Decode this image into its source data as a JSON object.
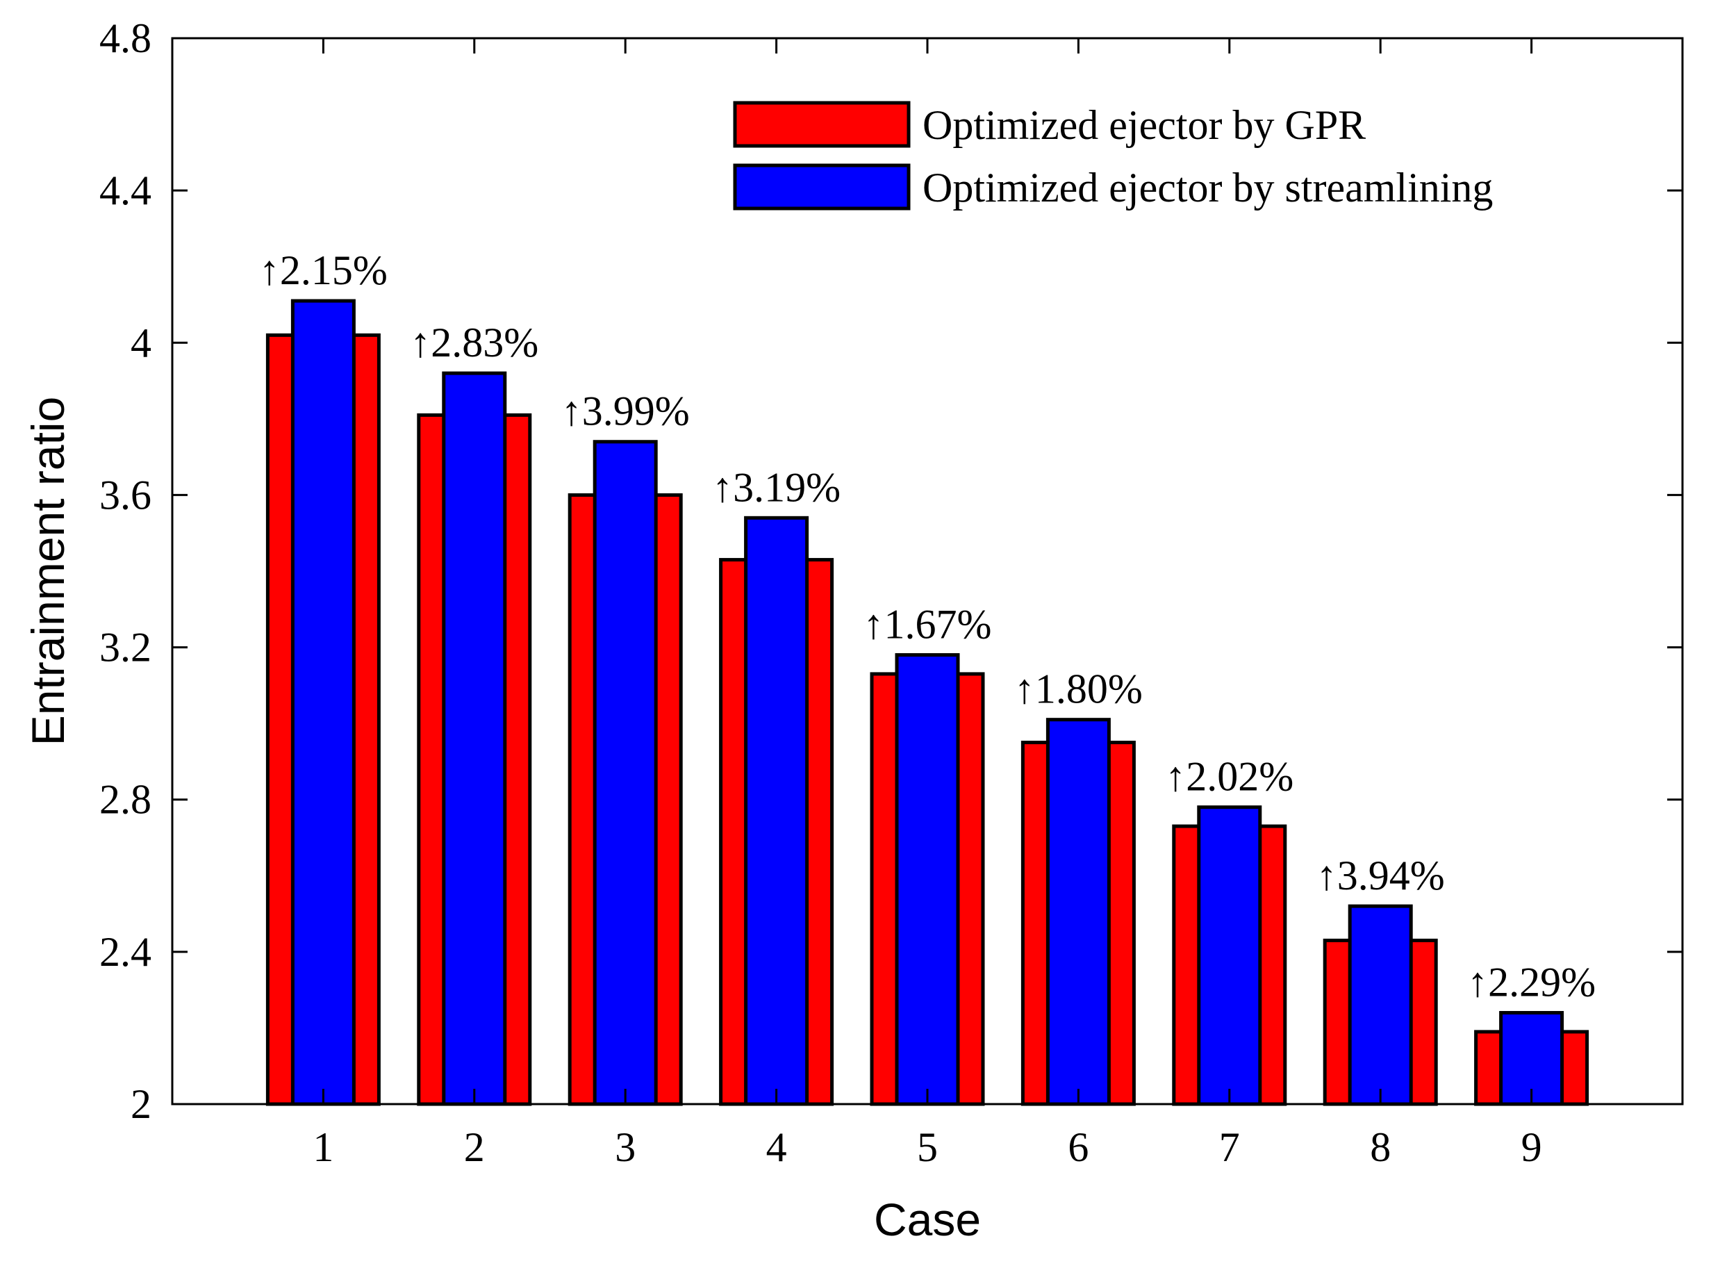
{
  "chart_data": {
    "type": "bar",
    "xlabel": "Case",
    "ylabel": "Entrainment ratio",
    "ylim": [
      2,
      4.8
    ],
    "yticks": [
      "2",
      "2.4",
      "2.8",
      "3.2",
      "3.6",
      "4",
      "4.4",
      "4.8"
    ],
    "categories": [
      "1",
      "2",
      "3",
      "4",
      "5",
      "6",
      "7",
      "8",
      "9"
    ],
    "series": [
      {
        "name": "Optimized ejector by GPR",
        "color": "#ff0000",
        "values": [
          4.02,
          3.81,
          3.6,
          3.43,
          3.13,
          2.95,
          2.73,
          2.43,
          2.19
        ]
      },
      {
        "name": "Optimized ejector by streamlining",
        "color": "#0000ff",
        "values": [
          4.11,
          3.92,
          3.74,
          3.54,
          3.18,
          3.01,
          2.78,
          2.52,
          2.24
        ]
      }
    ],
    "annotations": [
      "↑2.15%",
      "↑2.83%",
      "↑3.99%",
      "↑3.19%",
      "↑1.67%",
      "↑1.80%",
      "↑2.02%",
      "↑3.94%",
      "↑2.29%"
    ],
    "legend_position": "top-right",
    "grid": false
  }
}
